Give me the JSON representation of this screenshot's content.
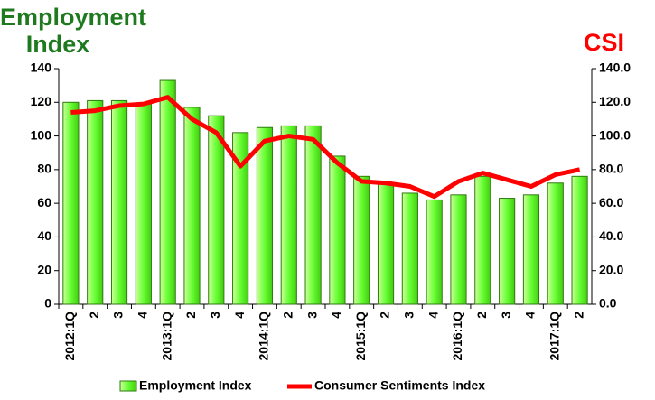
{
  "chart_data": {
    "type": "bar",
    "y_label": "Employment Index",
    "y2_label": "CSI",
    "categories": [
      "2012:1Q",
      "2",
      "3",
      "4",
      "2013:1Q",
      "2",
      "3",
      "4",
      "2014:1Q",
      "2",
      "3",
      "4",
      "2015:1Q",
      "2",
      "3",
      "4",
      "2016:1Q",
      "2",
      "3",
      "4",
      "2017:1Q",
      "2"
    ],
    "series": [
      {
        "name": "Employment Index",
        "type": "bar",
        "color": "#66ff33",
        "values": [
          120,
          121,
          121,
          119,
          133,
          117,
          112,
          102,
          105,
          106,
          106,
          88,
          76,
          72,
          66,
          62,
          65,
          76,
          63,
          65,
          72,
          76
        ]
      },
      {
        "name": "Consumer Sentiments Index",
        "type": "line",
        "axis": "y2",
        "color": "#ff0000",
        "values": [
          114,
          115,
          118,
          119,
          123,
          110,
          102,
          82,
          97,
          100,
          98,
          84,
          73,
          72,
          70,
          64,
          73,
          78,
          74,
          70,
          77,
          80
        ]
      }
    ],
    "ylim": [
      0,
      140
    ],
    "yticks": [
      0,
      20,
      40,
      60,
      80,
      100,
      120,
      140
    ],
    "y2lim": [
      0,
      140
    ],
    "y2ticks": [
      {
        "value": 0,
        "label": "0.0"
      },
      {
        "value": 20,
        "label": "20.0"
      },
      {
        "value": 40,
        "label": "40.0"
      },
      {
        "value": 60,
        "label": "60.0"
      },
      {
        "value": 80,
        "label": "80.0"
      },
      {
        "value": 100,
        "label": "100.0"
      },
      {
        "value": 120,
        "label": "120.0"
      },
      {
        "value": 140,
        "label": "140.0"
      }
    ],
    "legend": "bottom"
  }
}
